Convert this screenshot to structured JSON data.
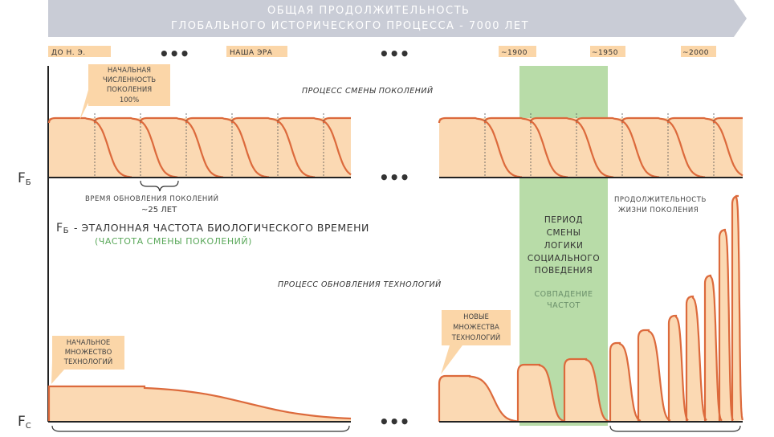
{
  "title": {
    "line1": "ОБЩАЯ ПРОДОЛЖИТЕЛЬНОСТЬ",
    "line2": "ГЛОБАЛЬНОГО ИСТОРИЧЕСКОГО ПРОЦЕССА - 7000 ЛЕТ"
  },
  "timeline": {
    "era_bc": "ДО Н. Э.",
    "era_ad": "НАША ЭРА",
    "y1900": "~1900",
    "y1950": "~1950",
    "y2000": "~2000",
    "ellipsis": "•••"
  },
  "top_panel": {
    "initial_population_box": [
      "НАЧАЛЬНАЯ",
      "ЧИСЛЕННОСТЬ",
      "ПОКОЛЕНИЯ",
      "100%"
    ],
    "process_label": "ПРОЦЕСС СМЕНЫ ПОКОЛЕНИЙ",
    "axis_label": "F",
    "axis_sub": "Б",
    "renewal_time_label": "ВРЕМЯ ОБНОВЛЕНИЯ ПОКОЛЕНИЙ",
    "renewal_time_value": "~25 ЛЕТ",
    "lifespan_label": [
      "ПРОДОЛЖИТЕЛЬНОСТЬ",
      "ЖИЗНИ ПОКОЛЕНИЯ"
    ]
  },
  "legend": {
    "main_prefix": "F",
    "main_sub": "Б",
    "main_text": "- ЭТАЛОННАЯ ЧАСТОТА БИОЛОГИЧЕСКОГО ВРЕМЕНИ",
    "main_paren": "(ЧАСТОТА СМЕНЫ ПОКОЛЕНИЙ)"
  },
  "green_band": {
    "period_lines": [
      "ПЕРИОД",
      "СМЕНЫ",
      "ЛОГИКИ",
      "СОЦИАЛЬНОГО",
      "ПОВЕДЕНИЯ"
    ],
    "coincidence_lines": [
      "СОВПАДЕНИЕ",
      "ЧАСТОТ"
    ]
  },
  "bottom_panel": {
    "process_label": "ПРОЦЕСС ОБНОВЛЕНИЯ ТЕХНОЛОГИЙ",
    "initial_tech_box": [
      "НАЧАЛЬНОЕ",
      "МНОЖЕСТВО",
      "ТЕХНОЛОГИЙ"
    ],
    "new_tech_box": [
      "НОВЫЕ",
      "МНОЖЕСТВА",
      "ТЕХНОЛОГИЙ"
    ],
    "axis_label": "F",
    "axis_sub": "С"
  },
  "colors": {
    "banner": "#c9ccd6",
    "fill": "#fbd9b3",
    "curve": "#dc6a3c",
    "green": "#b8dca8",
    "box": "#fbd6a8",
    "axis": "#222222"
  }
}
